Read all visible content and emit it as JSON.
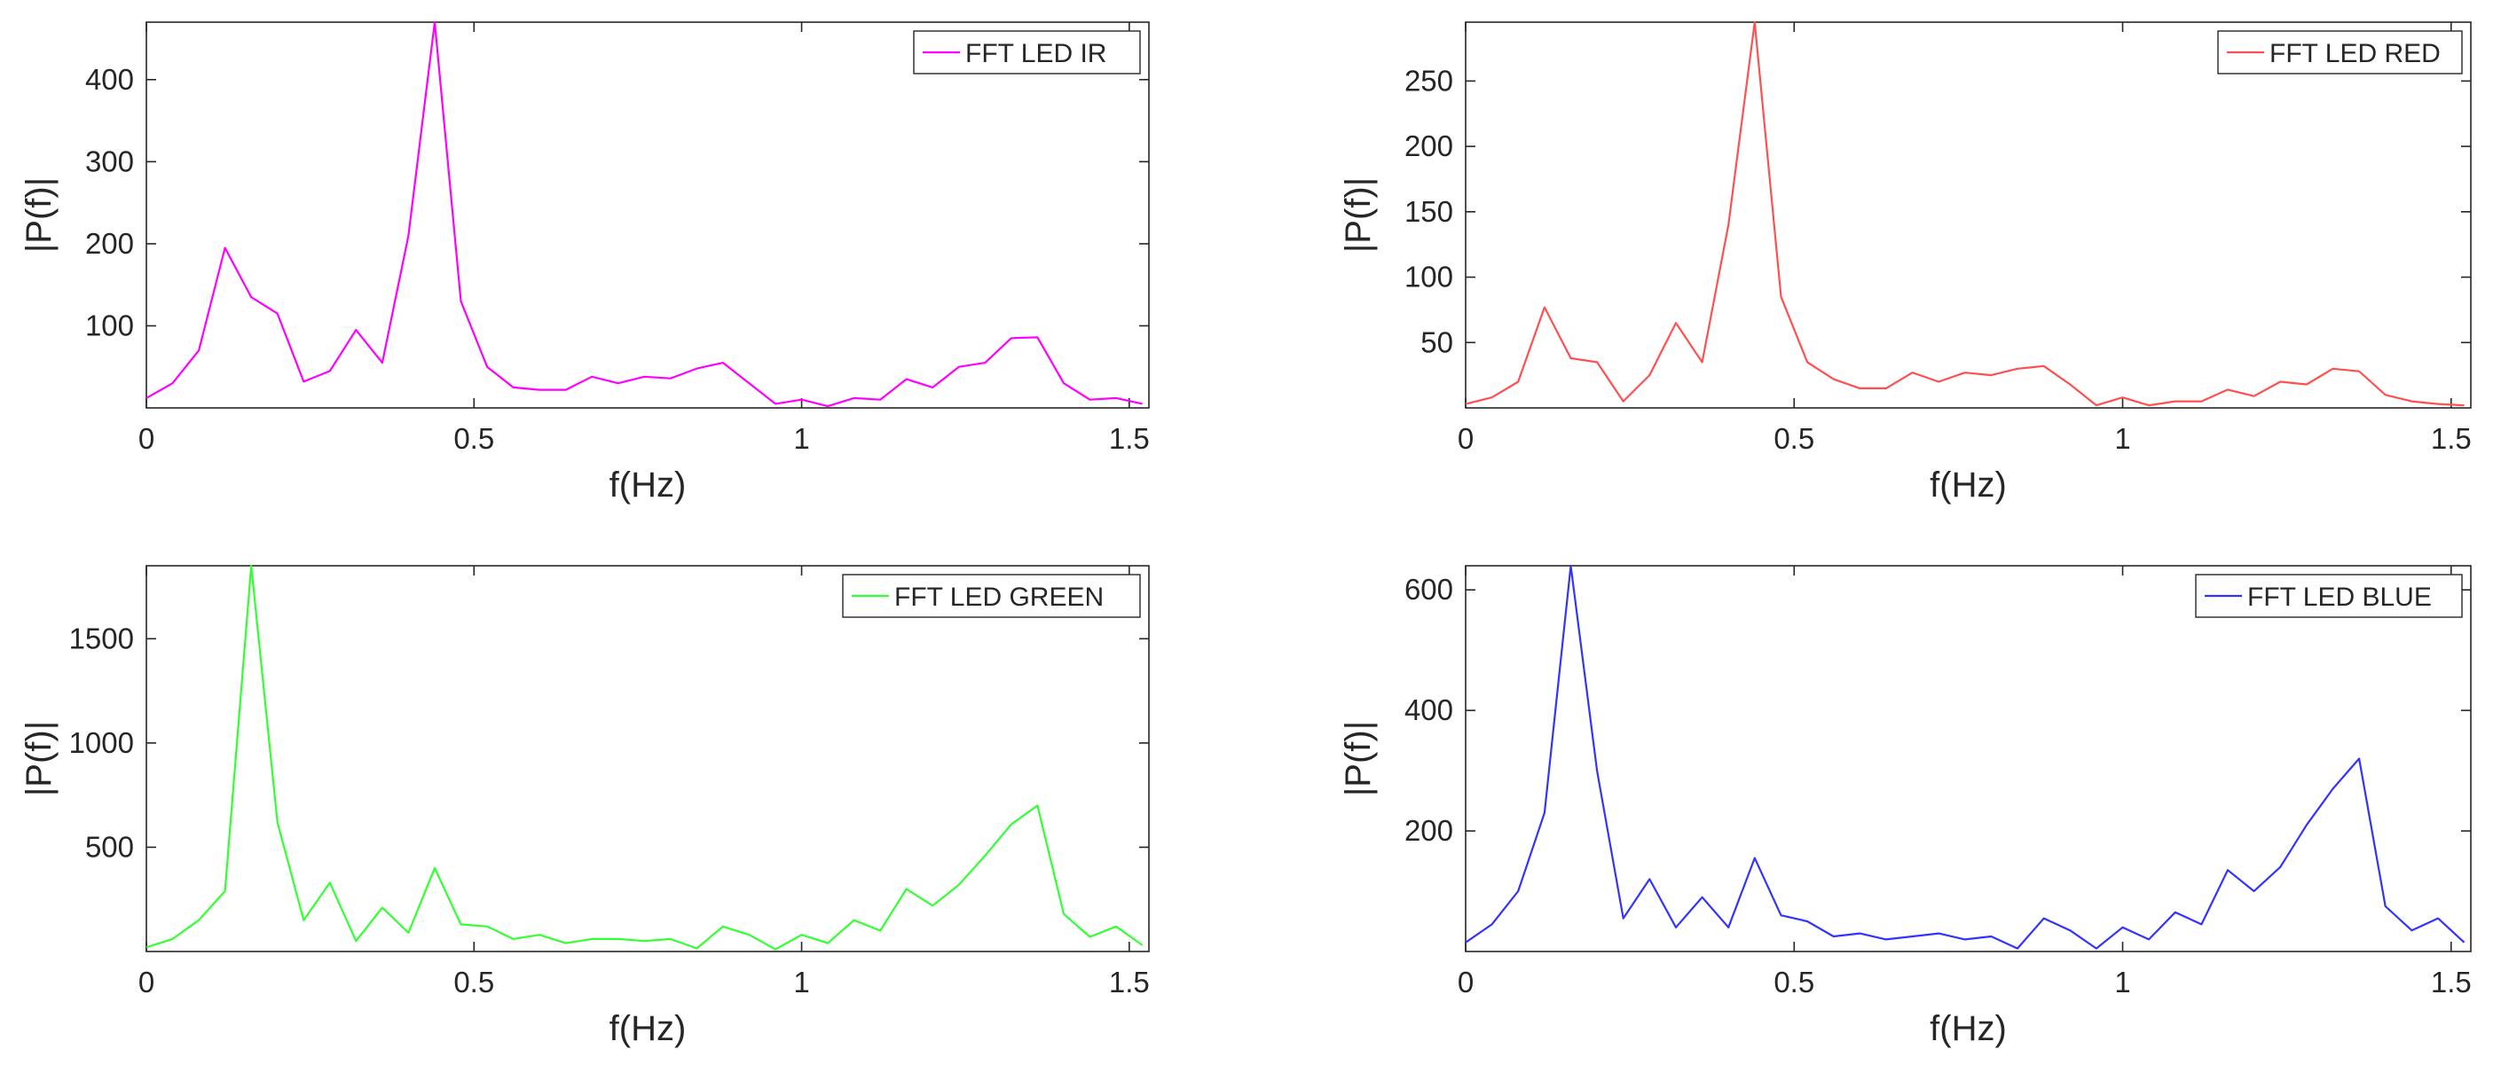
{
  "chart_data": [
    {
      "type": "line",
      "xlabel": "f(Hz)",
      "ylabel": "|P(f)|",
      "xlim": [
        0,
        1.53
      ],
      "ylim": [
        0,
        470
      ],
      "xticks": [
        0,
        0.5,
        1,
        1.5
      ],
      "xtick_labels": [
        "0",
        "0.5",
        "1",
        "1.5"
      ],
      "yticks": [
        100,
        200,
        300,
        400
      ],
      "ytick_labels": [
        "100",
        "200",
        "300",
        "400"
      ],
      "legend_position": "top-right",
      "grid": false,
      "x": [
        0,
        0.04,
        0.08,
        0.12,
        0.16,
        0.2,
        0.24,
        0.28,
        0.32,
        0.36,
        0.4,
        0.44,
        0.48,
        0.52,
        0.56,
        0.6,
        0.64,
        0.68,
        0.72,
        0.76,
        0.8,
        0.84,
        0.88,
        0.92,
        0.96,
        1,
        1.04,
        1.08,
        1.12,
        1.16,
        1.2,
        1.24,
        1.28,
        1.32,
        1.36,
        1.4,
        1.44,
        1.48,
        1.52
      ],
      "series": [
        {
          "name": "FFT LED IR",
          "color": "#ff00ff",
          "values": [
            12,
            30,
            70,
            195,
            135,
            115,
            32,
            45,
            95,
            55,
            210,
            470,
            130,
            50,
            25,
            22,
            22,
            38,
            30,
            38,
            36,
            48,
            55,
            30,
            5,
            10,
            2,
            12,
            10,
            35,
            25,
            50,
            55,
            85,
            86,
            30,
            10,
            12,
            5
          ]
        }
      ]
    },
    {
      "type": "line",
      "xlabel": "f(Hz)",
      "ylabel": "|P(f)|",
      "xlim": [
        0,
        1.53
      ],
      "ylim": [
        0,
        295
      ],
      "xticks": [
        0,
        0.5,
        1,
        1.5
      ],
      "xtick_labels": [
        "0",
        "0.5",
        "1",
        "1.5"
      ],
      "yticks": [
        50,
        100,
        150,
        200,
        250
      ],
      "ytick_labels": [
        "50",
        "100",
        "150",
        "200",
        "250"
      ],
      "legend_position": "top-right",
      "grid": false,
      "x": [
        0,
        0.04,
        0.08,
        0.12,
        0.16,
        0.2,
        0.24,
        0.28,
        0.32,
        0.36,
        0.4,
        0.44,
        0.48,
        0.52,
        0.56,
        0.6,
        0.64,
        0.68,
        0.72,
        0.76,
        0.8,
        0.84,
        0.88,
        0.92,
        0.96,
        1,
        1.04,
        1.08,
        1.12,
        1.16,
        1.2,
        1.24,
        1.28,
        1.32,
        1.36,
        1.4,
        1.44,
        1.48,
        1.52
      ],
      "series": [
        {
          "name": "FFT LED RED",
          "color": "#ff5050",
          "values": [
            3,
            8,
            20,
            77,
            38,
            35,
            5,
            25,
            65,
            35,
            140,
            295,
            85,
            35,
            22,
            15,
            15,
            27,
            20,
            27,
            25,
            30,
            32,
            18,
            2,
            8,
            2,
            5,
            5,
            14,
            9,
            20,
            18,
            30,
            28,
            10,
            5,
            3,
            2
          ]
        }
      ]
    },
    {
      "type": "line",
      "xlabel": "f(Hz)",
      "ylabel": "|P(f)|",
      "xlim": [
        0,
        1.53
      ],
      "ylim": [
        0,
        1850
      ],
      "xticks": [
        0,
        0.5,
        1,
        1.5
      ],
      "xtick_labels": [
        "0",
        "0.5",
        "1",
        "1.5"
      ],
      "yticks": [
        500,
        1000,
        1500
      ],
      "ytick_labels": [
        "500",
        "1000",
        "1500"
      ],
      "legend_position": "top-right",
      "grid": false,
      "x": [
        0,
        0.04,
        0.08,
        0.12,
        0.16,
        0.2,
        0.24,
        0.28,
        0.32,
        0.36,
        0.4,
        0.44,
        0.48,
        0.52,
        0.56,
        0.6,
        0.64,
        0.68,
        0.72,
        0.76,
        0.8,
        0.84,
        0.88,
        0.92,
        0.96,
        1,
        1.04,
        1.08,
        1.12,
        1.16,
        1.2,
        1.24,
        1.28,
        1.32,
        1.36,
        1.4,
        1.44,
        1.48,
        1.52
      ],
      "series": [
        {
          "name": "FFT LED GREEN",
          "color": "#33ff33",
          "values": [
            20,
            60,
            150,
            290,
            1850,
            620,
            150,
            330,
            50,
            210,
            90,
            400,
            130,
            120,
            60,
            80,
            40,
            60,
            60,
            50,
            60,
            15,
            120,
            80,
            10,
            80,
            40,
            150,
            100,
            300,
            220,
            320,
            460,
            610,
            700,
            180,
            70,
            120,
            30
          ]
        }
      ]
    },
    {
      "type": "line",
      "xlabel": "f(Hz)",
      "ylabel": "|P(f)|",
      "xlim": [
        0,
        1.53
      ],
      "ylim": [
        0,
        640
      ],
      "xticks": [
        0,
        0.5,
        1,
        1.5
      ],
      "xtick_labels": [
        "0",
        "0.5",
        "1",
        "1.5"
      ],
      "yticks": [
        200,
        400,
        600
      ],
      "ytick_labels": [
        "200",
        "400",
        "600"
      ],
      "legend_position": "top-right",
      "grid": false,
      "x": [
        0,
        0.04,
        0.08,
        0.12,
        0.16,
        0.2,
        0.24,
        0.28,
        0.32,
        0.36,
        0.4,
        0.44,
        0.48,
        0.52,
        0.56,
        0.6,
        0.64,
        0.68,
        0.72,
        0.76,
        0.8,
        0.84,
        0.88,
        0.92,
        0.96,
        1,
        1.04,
        1.08,
        1.12,
        1.16,
        1.2,
        1.24,
        1.28,
        1.32,
        1.36,
        1.4,
        1.44,
        1.48,
        1.52
      ],
      "series": [
        {
          "name": "FFT LED BLUE",
          "color": "#3333ff",
          "values": [
            15,
            45,
            100,
            230,
            640,
            300,
            55,
            120,
            40,
            90,
            40,
            155,
            60,
            50,
            25,
            30,
            20,
            25,
            30,
            20,
            25,
            5,
            55,
            35,
            5,
            40,
            20,
            65,
            45,
            135,
            100,
            140,
            210,
            270,
            320,
            75,
            35,
            55,
            15
          ]
        }
      ]
    }
  ]
}
